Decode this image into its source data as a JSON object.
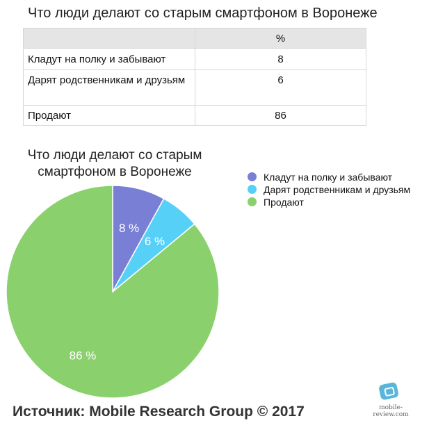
{
  "page_title": "Что люди делают со старым смартфоном в Воронеже",
  "table": {
    "header": [
      "",
      "%"
    ],
    "rows": [
      {
        "label": "Кладут на полку и забывают",
        "value": "8"
      },
      {
        "label": "Дарят родственникам и друзьям",
        "value": "6"
      },
      {
        "label": "Продают",
        "value": "86"
      }
    ]
  },
  "chart_data": {
    "type": "pie",
    "title": "Что люди делают со старым смартфоном в Воронеже",
    "slices": [
      {
        "label": "Кладут на полку и забывают",
        "value": 8,
        "text": "8 %",
        "color": "#7a7fd6"
      },
      {
        "label": "Дарят родственникам и друзьям",
        "value": 6,
        "text": "6 %",
        "color": "#57d0f8"
      },
      {
        "label": "Продают",
        "value": 86,
        "text": "86 %",
        "color": "#8ad16e"
      }
    ],
    "legend_position": "right",
    "start_angle": "top, clockwise"
  },
  "source": "Источник: Mobile Research Group © 2017",
  "logo_text": "mobile-review.com"
}
